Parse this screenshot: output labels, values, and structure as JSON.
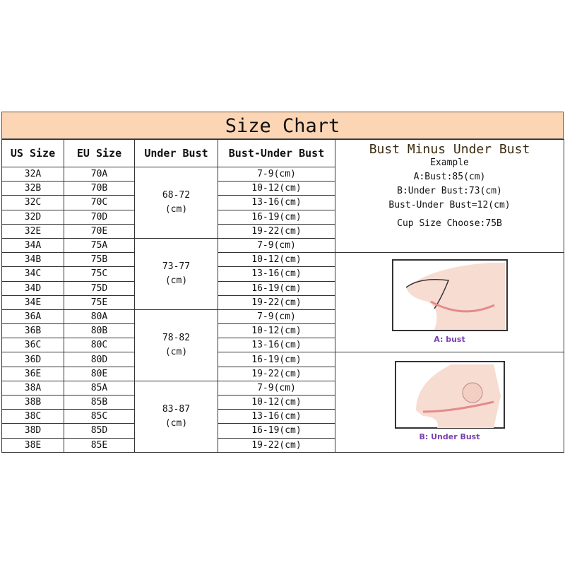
{
  "title": "Size Chart",
  "headers": [
    "US Size",
    "EU Size",
    "Under Bust",
    "Bust-Under Bust"
  ],
  "groups": [
    {
      "under_bust": "68-72",
      "unit": "(cm)",
      "rows": [
        {
          "us": "32A",
          "eu": "70A",
          "diff": "7-9(cm)"
        },
        {
          "us": "32B",
          "eu": "70B",
          "diff": "10-12(cm)"
        },
        {
          "us": "32C",
          "eu": "70C",
          "diff": "13-16(cm)"
        },
        {
          "us": "32D",
          "eu": "70D",
          "diff": "16-19(cm)"
        },
        {
          "us": "32E",
          "eu": "70E",
          "diff": "19-22(cm)"
        }
      ]
    },
    {
      "under_bust": "73-77",
      "unit": "(cm)",
      "rows": [
        {
          "us": "34A",
          "eu": "75A",
          "diff": "7-9(cm)"
        },
        {
          "us": "34B",
          "eu": "75B",
          "diff": "10-12(cm)"
        },
        {
          "us": "34C",
          "eu": "75C",
          "diff": "13-16(cm)"
        },
        {
          "us": "34D",
          "eu": "75D",
          "diff": "16-19(cm)"
        },
        {
          "us": "34E",
          "eu": "75E",
          "diff": "19-22(cm)"
        }
      ]
    },
    {
      "under_bust": "78-82",
      "unit": "(cm)",
      "rows": [
        {
          "us": "36A",
          "eu": "80A",
          "diff": "7-9(cm)"
        },
        {
          "us": "36B",
          "eu": "80B",
          "diff": "10-12(cm)"
        },
        {
          "us": "36C",
          "eu": "80C",
          "diff": "13-16(cm)"
        },
        {
          "us": "36D",
          "eu": "80D",
          "diff": "16-19(cm)"
        },
        {
          "us": "36E",
          "eu": "80E",
          "diff": "19-22(cm)"
        }
      ]
    },
    {
      "under_bust": "83-87",
      "unit": "(cm)",
      "rows": [
        {
          "us": "38A",
          "eu": "85A",
          "diff": "7-9(cm)"
        },
        {
          "us": "38B",
          "eu": "85B",
          "diff": "10-12(cm)"
        },
        {
          "us": "38C",
          "eu": "85C",
          "diff": "13-16(cm)"
        },
        {
          "us": "38D",
          "eu": "85D",
          "diff": "16-19(cm)"
        },
        {
          "us": "38E",
          "eu": "85E",
          "diff": "19-22(cm)"
        }
      ]
    }
  ],
  "panel": {
    "heading": "Bust Minus Under Bust",
    "example": "Example",
    "bust": "A:Bust:85(cm)",
    "under_bust": "B:Under Bust:73(cm)",
    "difference": "Bust-Under Bust=12(cm)",
    "cup": "Cup Size Choose:75B",
    "caption_a": "A: bust",
    "caption_b": "B: Under Bust"
  },
  "colors": {
    "title_bg": "#fcd5b4",
    "caption": "#7a3fb0",
    "tape": "#e58a8a",
    "skin": "#f7dcd2"
  }
}
